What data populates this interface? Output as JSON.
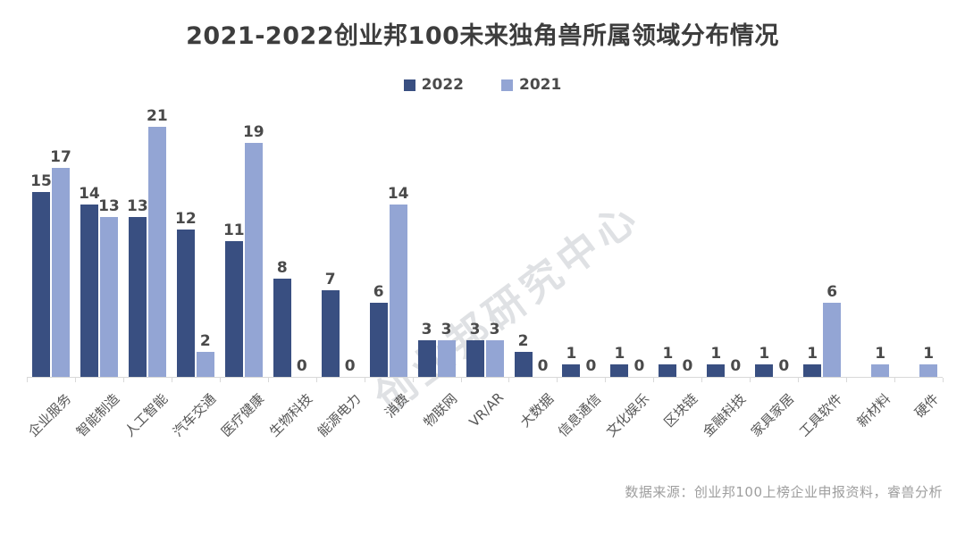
{
  "title": "2021-2022创业邦100未来独角兽所属领域分布情况",
  "watermark": "创业邦研究中心",
  "footer": {
    "source": "数据来源：创业邦100上榜企业申报资料，睿兽分析"
  },
  "colors": {
    "series_2022": "#394F81",
    "series_2021": "#93A5D4",
    "axis": "#d9d9d9",
    "title_text": "#3d3d3d",
    "value_text": "#4a4a4a",
    "source_text": "#9e9e9e"
  },
  "chart_data": {
    "type": "bar",
    "title": "2021-2022创业邦100未来独角兽所属领域分布情况",
    "categories": [
      "企业服务",
      "智能制造",
      "人工智能",
      "汽车交通",
      "医疗健康",
      "生物科技",
      "能源电力",
      "消费",
      "物联网",
      "VR/AR",
      "大数据",
      "信息通信",
      "文化娱乐",
      "区块链",
      "金融科技",
      "家具家居",
      "工具软件",
      "新材料",
      "硬件"
    ],
    "series": [
      {
        "name": "2022",
        "color": "#394F81",
        "values": [
          15,
          14,
          13,
          12,
          11,
          8,
          7,
          6,
          3,
          3,
          2,
          1,
          1,
          1,
          1,
          1,
          1,
          null,
          null
        ]
      },
      {
        "name": "2021",
        "color": "#93A5D4",
        "values": [
          17,
          13,
          21,
          2,
          19,
          0,
          0,
          14,
          3,
          3,
          0,
          0,
          0,
          0,
          0,
          0,
          6,
          1,
          1
        ]
      }
    ],
    "xlabel": "",
    "ylabel": "",
    "ylim": [
      0,
      21
    ],
    "grid": false,
    "legend_position": "top",
    "value_labels": true,
    "bar_label_note": "0 shown as text at baseline when a bar is zero; categories 新材料 and 硬件 have no 2022 bar at all"
  }
}
